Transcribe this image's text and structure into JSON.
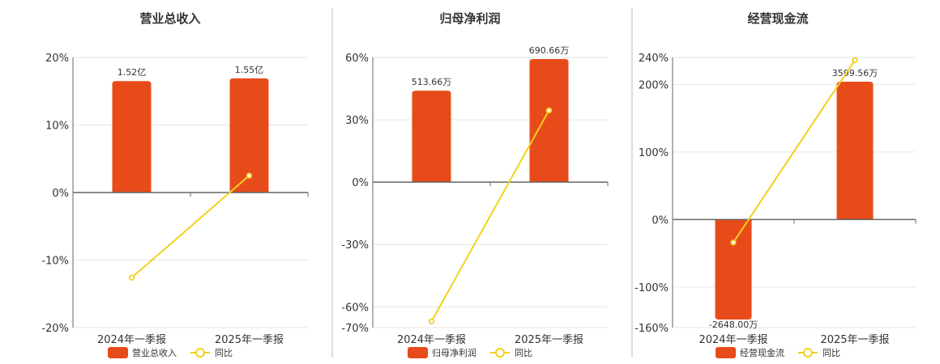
{
  "colors": {
    "bar": "#E84B1A",
    "line": "#F2D11C",
    "grid": "#e6e6e6",
    "axis": "#666666",
    "divider": "#bbbbbb"
  },
  "chart_data": [
    {
      "type": "bar",
      "title": "营业总收入",
      "categories": [
        "2024年一季报",
        "2025年一季报"
      ],
      "ylim": [
        -20,
        20
      ],
      "yticks": [
        "20%",
        "10%",
        "0%",
        "-10%",
        "-20%"
      ],
      "ytick_values": [
        20,
        10,
        0,
        -10,
        -20
      ],
      "series": [
        {
          "name": "营业总收入",
          "kind": "bar",
          "values": [
            16.5,
            16.9
          ],
          "labels": [
            "1.52亿",
            "1.55亿"
          ]
        },
        {
          "name": "同比",
          "kind": "line",
          "values": [
            -12.6,
            2.5
          ]
        }
      ],
      "legend": "bottom-center",
      "grid": true
    },
    {
      "type": "bar",
      "title": "归母净利润",
      "categories": [
        "2024年一季报",
        "2025年一季报"
      ],
      "ylim": [
        -70,
        60
      ],
      "yticks": [
        "60%",
        "30%",
        "0%",
        "-30%",
        "-60%",
        "-70%"
      ],
      "ytick_values": [
        60,
        30,
        0,
        -30,
        -60,
        -70
      ],
      "series": [
        {
          "name": "归母净利润",
          "kind": "bar",
          "values": [
            44,
            59.2
          ],
          "labels": [
            "513.66万",
            "690.66万"
          ]
        },
        {
          "name": "同比",
          "kind": "line",
          "values": [
            -67,
            34.5
          ]
        }
      ],
      "legend": "bottom-center",
      "grid": true
    },
    {
      "type": "bar",
      "title": "经营现金流",
      "categories": [
        "2024年一季报",
        "2025年一季报"
      ],
      "ylim": [
        -160,
        240
      ],
      "yticks": [
        "240%",
        "200%",
        "100%",
        "0%",
        "-100%",
        "-160%"
      ],
      "ytick_values": [
        240,
        200,
        100,
        0,
        -100,
        -160
      ],
      "series": [
        {
          "name": "经营现金流",
          "kind": "bar",
          "values": [
            -148,
            204
          ],
          "labels": [
            "-2648.00万",
            "3599.56万"
          ]
        },
        {
          "name": "同比",
          "kind": "line",
          "values": [
            -34,
            236
          ]
        }
      ],
      "legend": "bottom-center",
      "grid": true
    }
  ]
}
